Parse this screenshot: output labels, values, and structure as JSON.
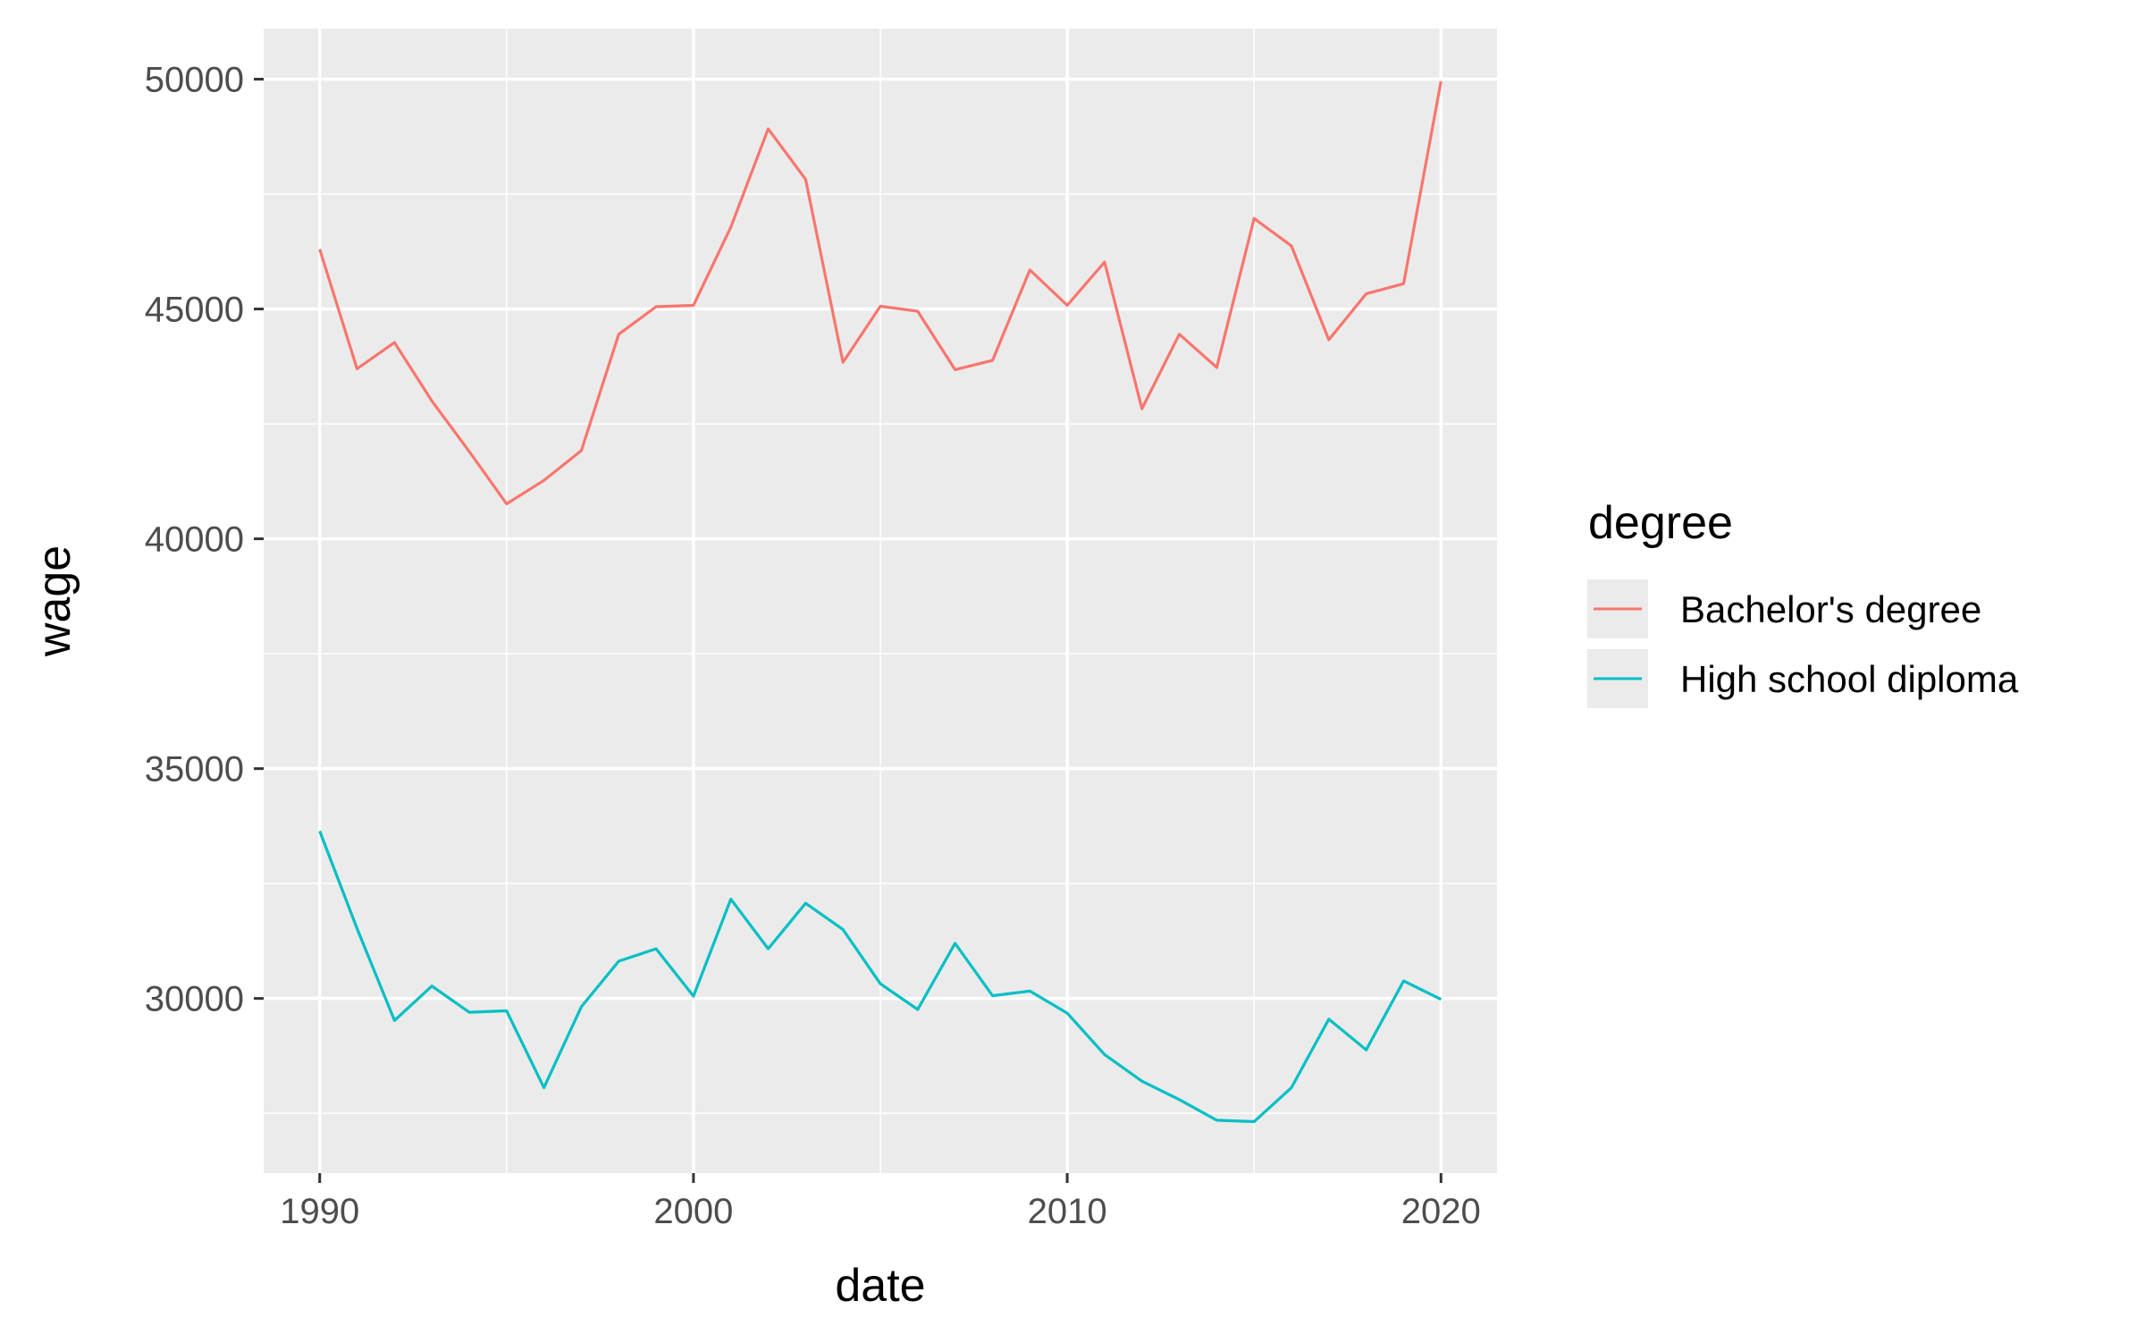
{
  "chart_data": {
    "type": "line",
    "xlabel": "date",
    "ylabel": "wage",
    "xlim": [
      1988.5,
      2021.5
    ],
    "ylim": [
      26200,
      51100
    ],
    "x_ticks": [
      1990,
      2000,
      2010,
      2020
    ],
    "y_ticks": [
      30000,
      35000,
      40000,
      45000,
      50000
    ],
    "grid": true,
    "legend": {
      "title": "degree",
      "position": "right"
    },
    "x": [
      1990,
      1991,
      1992,
      1993,
      1994,
      1995,
      1996,
      1997,
      1998,
      1999,
      2000,
      2001,
      2002,
      2003,
      2004,
      2005,
      2006,
      2007,
      2008,
      2009,
      2010,
      2011,
      2012,
      2013,
      2014,
      2015,
      2016,
      2017,
      2018,
      2019,
      2020
    ],
    "series": [
      {
        "name": "Bachelor's degree",
        "color": "#F8766D",
        "values": [
          46300,
          43700,
          44270,
          43000,
          41900,
          40760,
          41270,
          41920,
          44450,
          45050,
          45080,
          46780,
          48920,
          47820,
          43840,
          45060,
          44950,
          43680,
          43880,
          45850,
          45080,
          46020,
          42830,
          44450,
          43730,
          46970,
          46370,
          44330,
          45330,
          45550,
          49950
        ]
      },
      {
        "name": "High school diploma",
        "color": "#00BFC4",
        "values": [
          33640,
          31520,
          29520,
          30270,
          29700,
          29730,
          28060,
          29820,
          30810,
          31080,
          30050,
          32160,
          31080,
          32070,
          31500,
          30320,
          29760,
          31200,
          30060,
          30160,
          29680,
          28780,
          28200,
          27800,
          27350,
          27320,
          28060,
          29550,
          28880,
          30380,
          29980
        ]
      }
    ]
  }
}
